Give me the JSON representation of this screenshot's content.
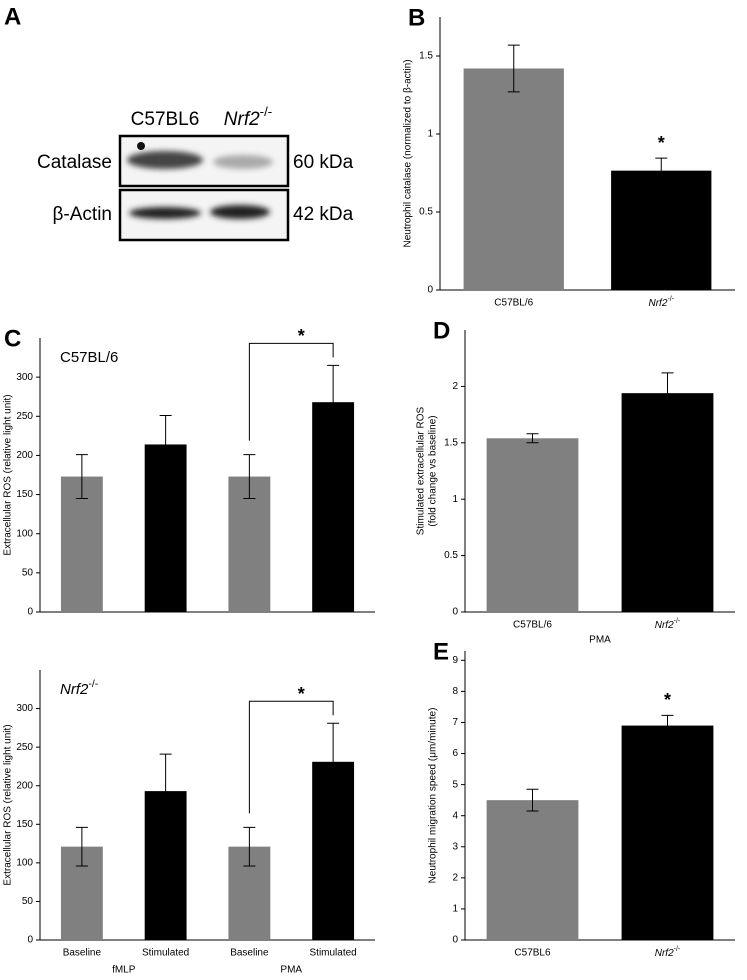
{
  "blot": {
    "panel": "A",
    "lanes": [
      "C57BL6",
      "Nrf2-/-"
    ],
    "rows": [
      {
        "label": "Catalase",
        "size": "60 kDa"
      },
      {
        "label": "β-Actin",
        "size": "42 kDa"
      }
    ]
  },
  "chart_data": [
    {
      "type": "bar",
      "panel": "B",
      "ylabel": [
        "Neutrophil catalase (normalized to β-actin)"
      ],
      "categories": [
        "C57BL/6",
        "Nrf2-/-"
      ],
      "values": [
        1.42,
        0.765
      ],
      "errors": [
        0.15,
        0.08
      ],
      "colors": [
        "#808080",
        "#000000"
      ],
      "ylim": [
        0,
        1.75
      ],
      "yticks": [
        0,
        0.5,
        1,
        1.5
      ],
      "annotations": [
        {
          "text": "*",
          "from": 1,
          "to": 1
        }
      ]
    },
    {
      "type": "bar",
      "panel": "C",
      "subtitle": "C57BL/6",
      "ylabel": [
        "Extracellular ROS (relative light unit)"
      ],
      "categories": [
        null,
        null,
        null,
        null
      ],
      "values": [
        173,
        214,
        173,
        268
      ],
      "errors": [
        28,
        37,
        28,
        47
      ],
      "colors": [
        "#808080",
        "#000000",
        "#808080",
        "#000000"
      ],
      "ylim": [
        0,
        350
      ],
      "yticks": [
        0,
        50,
        100,
        150,
        200,
        250,
        300
      ],
      "annotations": [
        {
          "text": "*",
          "from": 2,
          "to": 3
        }
      ]
    },
    {
      "type": "bar",
      "subtitle": "Nrf2-/-",
      "ylabel": [
        "Extracellular ROS (relative light unit)"
      ],
      "categories": [
        "Baseline",
        "Stimulated",
        "Baseline",
        "Stimulated"
      ],
      "values": [
        121,
        193,
        121,
        231
      ],
      "errors": [
        25,
        48,
        25,
        50
      ],
      "colors": [
        "#808080",
        "#000000",
        "#808080",
        "#000000"
      ],
      "groups": [
        {
          "label": "fMLP",
          "from": 0,
          "to": 1
        },
        {
          "label": "PMA",
          "from": 2,
          "to": 3
        }
      ],
      "ylim": [
        0,
        350
      ],
      "yticks": [
        0,
        50,
        100,
        150,
        200,
        250,
        300
      ],
      "annotations": [
        {
          "text": "*",
          "from": 2,
          "to": 3
        }
      ]
    },
    {
      "type": "bar",
      "panel": "D",
      "ylabel": [
        "Stimulated extracellular ROS",
        "(fold change vs baseline)"
      ],
      "xlabel": "PMA",
      "categories": [
        "C57BL/6",
        "Nrf2-/-"
      ],
      "values": [
        1.54,
        1.94
      ],
      "errors": [
        0.04,
        0.18
      ],
      "colors": [
        "#808080",
        "#000000"
      ],
      "ylim": [
        0,
        2.5
      ],
      "yticks": [
        0,
        0.5,
        1,
        1.5,
        2
      ]
    },
    {
      "type": "bar",
      "panel": "E",
      "ylabel": [
        "Neutrophil migration speed (μm/minute)"
      ],
      "categories": [
        "C57BL6",
        "Nrf2-/-"
      ],
      "values": [
        4.5,
        6.9
      ],
      "errors": [
        0.35,
        0.33
      ],
      "colors": [
        "#808080",
        "#000000"
      ],
      "ylim": [
        0,
        9.3
      ],
      "yticks": [
        0,
        1,
        2,
        3,
        4,
        5,
        6,
        7,
        8,
        9
      ],
      "annotations": [
        {
          "text": "*",
          "from": 1,
          "to": 1
        }
      ]
    }
  ]
}
